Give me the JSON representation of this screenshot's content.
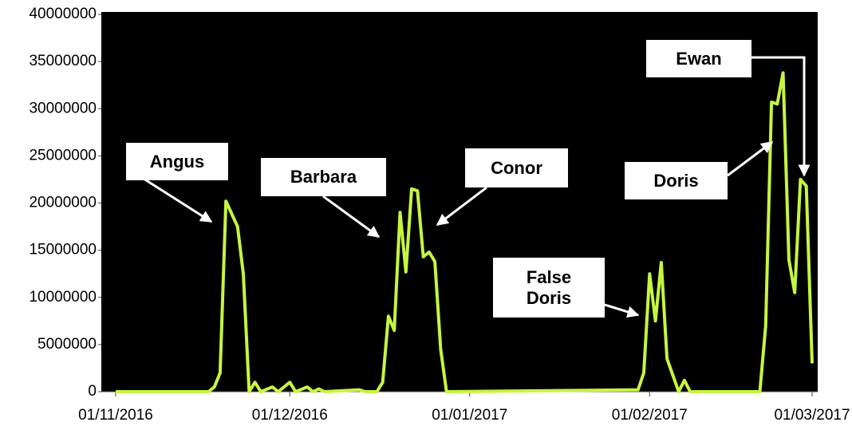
{
  "chart_data": {
    "type": "line",
    "annotations": [
      "Angus",
      "Barbara",
      "Conor",
      "False\nDoris",
      "Doris",
      "Ewan"
    ],
    "x": [
      "01/11/2016",
      "17/11/2016",
      "18/11/2016",
      "19/11/2016",
      "20/11/2016",
      "22/11/2016",
      "23/11/2016",
      "24/11/2016",
      "25/11/2016",
      "26/11/2016",
      "28/11/2016",
      "29/11/2016",
      "01/12/2016",
      "02/12/2016",
      "04/12/2016",
      "05/12/2016",
      "06/12/2016",
      "07/12/2016",
      "13/12/2016",
      "14/12/2016",
      "16/12/2016",
      "17/12/2016",
      "18/12/2016",
      "19/12/2016",
      "20/12/2016",
      "21/12/2016",
      "22/12/2016",
      "23/12/2016",
      "24/12/2016",
      "25/12/2016",
      "26/12/2016",
      "27/12/2016",
      "28/12/2016",
      "30/01/2017",
      "31/01/2017",
      "01/02/2017",
      "02/02/2017",
      "03/02/2017",
      "04/02/2017",
      "06/02/2017",
      "07/02/2017",
      "08/02/2017",
      "20/02/2017",
      "21/02/2017",
      "22/02/2017",
      "23/02/2017",
      "24/02/2017",
      "25/02/2017",
      "26/02/2017",
      "27/02/2017",
      "28/02/2017",
      "01/03/2017"
    ],
    "values": [
      0,
      0,
      500000,
      2000000,
      20200000,
      17500000,
      12500000,
      0,
      1000000,
      0,
      500000,
      0,
      1000000,
      0,
      500000,
      0,
      300000,
      0,
      200000,
      0,
      0,
      1000000,
      8000000,
      6500000,
      19000000,
      12700000,
      21500000,
      21300000,
      14300000,
      14800000,
      13800000,
      4500000,
      0,
      200000,
      2000000,
      12500000,
      7500000,
      13700000,
      3500000,
      0,
      1200000,
      0,
      0,
      7000000,
      30700000,
      30500000,
      33800000,
      14000000,
      10500000,
      22500000,
      21800000,
      3000000
    ],
    "color": "#c6f53f",
    "xlim": [
      "01/11/2016",
      "01/03/2017"
    ],
    "xticks": [
      "01/11/2016",
      "01/12/2016",
      "01/01/2017",
      "01/02/2017",
      "01/03/2017"
    ],
    "ylim": [
      0,
      40000000
    ],
    "yticks": [
      0,
      5000000,
      10000000,
      15000000,
      20000000,
      25000000,
      30000000,
      35000000,
      40000000
    ]
  }
}
